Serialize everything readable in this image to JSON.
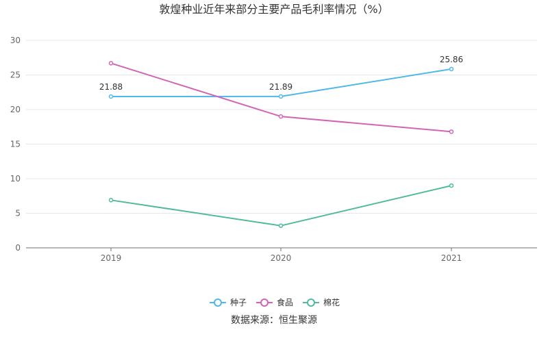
{
  "chart_data": {
    "type": "line",
    "title": "敦煌种业近年来部分主要产品毛利率情况（%）",
    "categories": [
      "2019",
      "2020",
      "2021"
    ],
    "ylim": [
      0,
      30
    ],
    "yticks": [
      0,
      5,
      10,
      15,
      20,
      25,
      30
    ],
    "grid": true,
    "legend_position": "bottom-center",
    "series": [
      {
        "name": "种子",
        "values": [
          21.88,
          21.89,
          25.86
        ],
        "color": "#4fb8ea",
        "labels": [
          "21.88",
          "21.89",
          "25.86"
        ]
      },
      {
        "name": "食品",
        "values": [
          26.7,
          19.0,
          16.8
        ],
        "color": "#d264b4",
        "labels": []
      },
      {
        "name": "棉花",
        "values": [
          6.9,
          3.2,
          9.0
        ],
        "color": "#4fba9c",
        "labels": []
      }
    ],
    "source": "数据来源：恒生聚源"
  }
}
